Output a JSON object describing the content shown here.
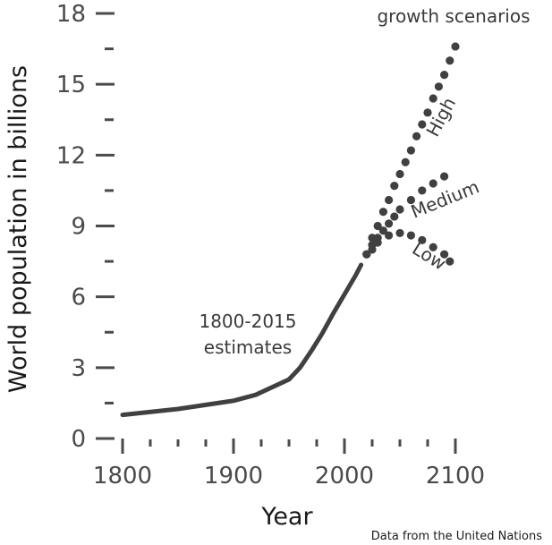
{
  "chart_data": {
    "type": "line",
    "xlabel": "Year",
    "ylabel": "World population in billions",
    "xlim": [
      1800,
      2100
    ],
    "ylim": [
      0,
      18
    ],
    "x_ticks": [
      1800,
      1900,
      2000,
      2100
    ],
    "x_minor_step": 25,
    "y_ticks": [
      0,
      3,
      6,
      9,
      12,
      15,
      18
    ],
    "y_minor_step": 1.5,
    "grid": false,
    "colors": {
      "line": "#404040",
      "text": "#4a4a4a"
    },
    "estimates": {
      "label_line1": "1800-2015",
      "label_line2": "estimates",
      "x": [
        1800,
        1850,
        1900,
        1920,
        1950,
        1960,
        1970,
        1980,
        1990,
        2000,
        2010,
        2015
      ],
      "y": [
        1.0,
        1.25,
        1.6,
        1.85,
        2.5,
        3.0,
        3.7,
        4.45,
        5.3,
        6.1,
        6.9,
        7.35
      ]
    },
    "scenarios_title": "growth scenarios",
    "scenarios": [
      {
        "name": "High",
        "x": [
          2020,
          2025,
          2030,
          2035,
          2040,
          2045,
          2050,
          2055,
          2060,
          2065,
          2070,
          2075,
          2080,
          2085,
          2090,
          2095,
          2100
        ],
        "y": [
          7.8,
          8.5,
          9.0,
          9.6,
          10.1,
          10.7,
          11.2,
          11.7,
          12.2,
          12.8,
          13.3,
          13.8,
          14.4,
          14.9,
          15.4,
          16.0,
          16.6
        ]
      },
      {
        "name": "Medium",
        "x": [
          2020,
          2025,
          2030,
          2035,
          2040,
          2045,
          2050,
          2060,
          2070,
          2080,
          2090
        ],
        "y": [
          7.8,
          8.2,
          8.5,
          8.8,
          9.1,
          9.4,
          9.7,
          10.1,
          10.5,
          10.8,
          11.1
        ]
      },
      {
        "name": "Low",
        "x": [
          2020,
          2025,
          2030,
          2040,
          2050,
          2060,
          2070,
          2080,
          2090,
          2095
        ],
        "y": [
          7.8,
          8.0,
          8.3,
          8.6,
          8.7,
          8.6,
          8.4,
          8.1,
          7.8,
          7.5
        ]
      }
    ],
    "source": "Data from the United Nations"
  }
}
